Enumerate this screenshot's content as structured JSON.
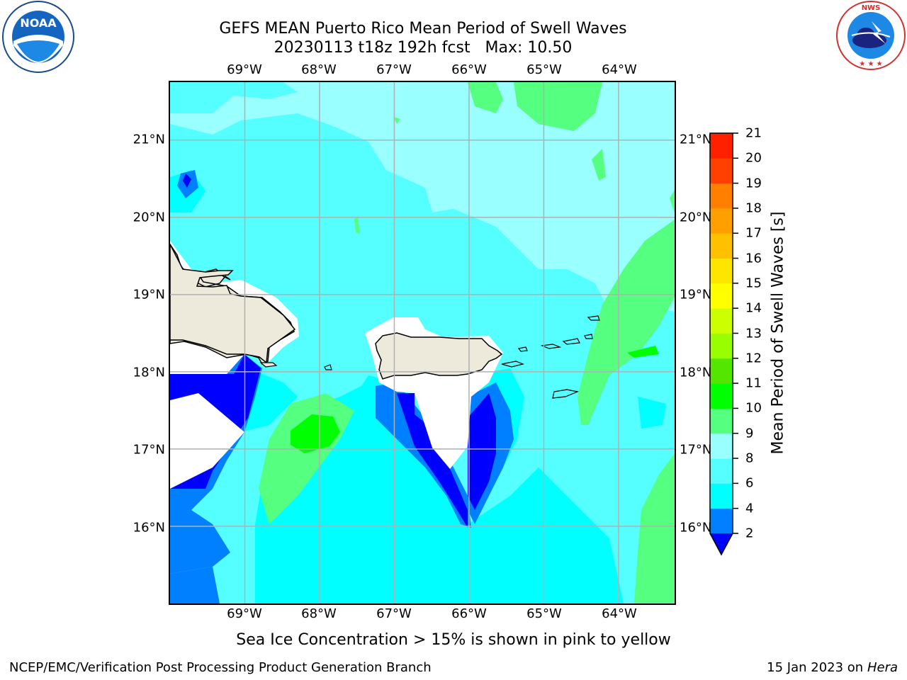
{
  "title_line1": "GEFS MEAN Puerto Rico Mean Period of Swell Waves",
  "title_line2": "20230113 t18z 192h fcst   Max: 10.50",
  "logos": {
    "left": "noaa-logo",
    "right": "national-weather-service-logo"
  },
  "nws_ring_text": "NATIONAL WEATHER SERVICE",
  "lon_labels": [
    "69°W",
    "68°W",
    "67°W",
    "66°W",
    "65°W",
    "64°W"
  ],
  "lat_labels": [
    "21°N",
    "20°N",
    "19°N",
    "18°N",
    "17°N",
    "16°N"
  ],
  "colorbar": {
    "label": "Mean Period of Swell Waves [s]",
    "ticks": [
      "2",
      "4",
      "6",
      "8",
      "9",
      "10",
      "11",
      "12",
      "13",
      "14",
      "15",
      "16",
      "17",
      "18",
      "19",
      "20",
      "21"
    ],
    "colors": [
      "#0000ff",
      "#0080ff",
      "#00ffff",
      "#55ffff",
      "#99ffff",
      "#55ff80",
      "#00ff00",
      "#55e600",
      "#99ff00",
      "#ccff00",
      "#ffff00",
      "#ffe600",
      "#ffc000",
      "#ffa000",
      "#ff8000",
      "#ff4000",
      "#ff2000",
      "#ff0000"
    ]
  },
  "chart_data": {
    "type": "heatmap",
    "title": "GEFS MEAN Puerto Rico Mean Period of Swell Waves",
    "subtitle": "20230113 t18z 192h fcst   Max: 10.50",
    "variable": "Mean Period of Swell Waves [s]",
    "max": 10.5,
    "xlim": [
      -70.0,
      -63.25
    ],
    "ylim": [
      15.0,
      21.75
    ],
    "xticks": [
      -69,
      -68,
      -67,
      -66,
      -65,
      -64
    ],
    "yticks": [
      16,
      17,
      18,
      19,
      20,
      21
    ],
    "grid": true,
    "colorbar_levels": [
      2,
      4,
      6,
      8,
      9,
      10,
      11,
      12,
      13,
      14,
      15,
      16,
      17,
      18,
      19,
      20,
      21
    ],
    "colorbar_extend": "min",
    "colorbar_position": "right"
  },
  "note": "Sea Ice Concentration > 15% is shown in pink to yellow",
  "footer_left": "NCEP/EMC/Verification Post Processing Product Generation Branch",
  "footer_right_prefix": "15 Jan 2023 on ",
  "footer_right_host": "Hera"
}
